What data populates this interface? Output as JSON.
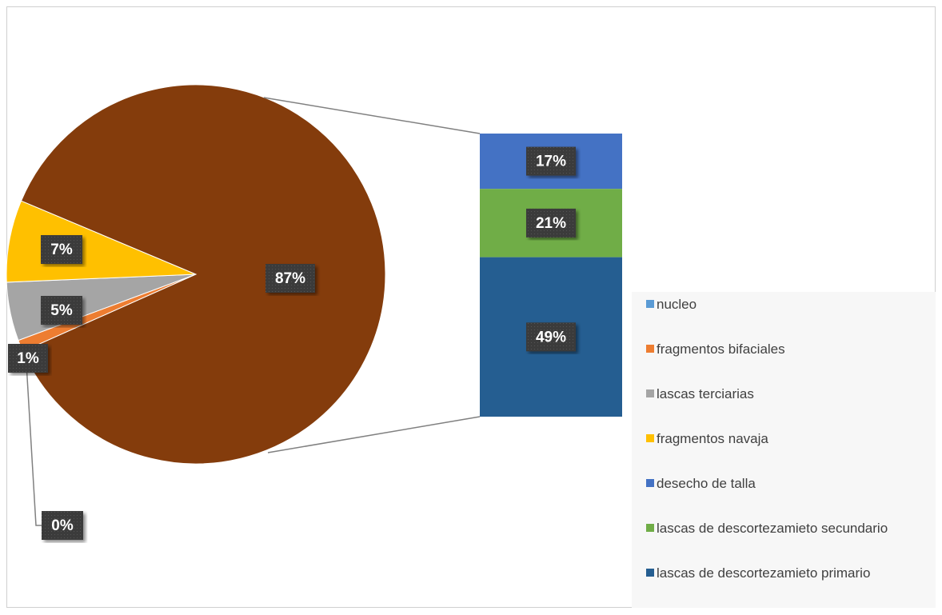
{
  "chart_data": {
    "type": "pie_of_bar",
    "pie": {
      "categories": [
        "nucleo",
        "fragmentos bifaciales",
        "lascas terciarias",
        "fragmentos navaja"
      ],
      "values": [
        0,
        1,
        5,
        7
      ],
      "value_labels": [
        "0%",
        "1%",
        "5%",
        "7%"
      ],
      "colors": [
        "#5b9bd5",
        "#ed7d31",
        "#a5a5a5",
        "#ffc000"
      ]
    },
    "other": {
      "value": 87,
      "value_label": "87%",
      "color": "#843c0c"
    },
    "bar": {
      "categories": [
        "desecho de talla",
        "lascas de descortezamieto secundario",
        "lascas de descortezamieto primario"
      ],
      "values": [
        17,
        21,
        49
      ],
      "value_labels": [
        "17%",
        "21%",
        "49%"
      ],
      "colors": [
        "#4472c4",
        "#70ad47",
        "#255e91"
      ]
    }
  }
}
